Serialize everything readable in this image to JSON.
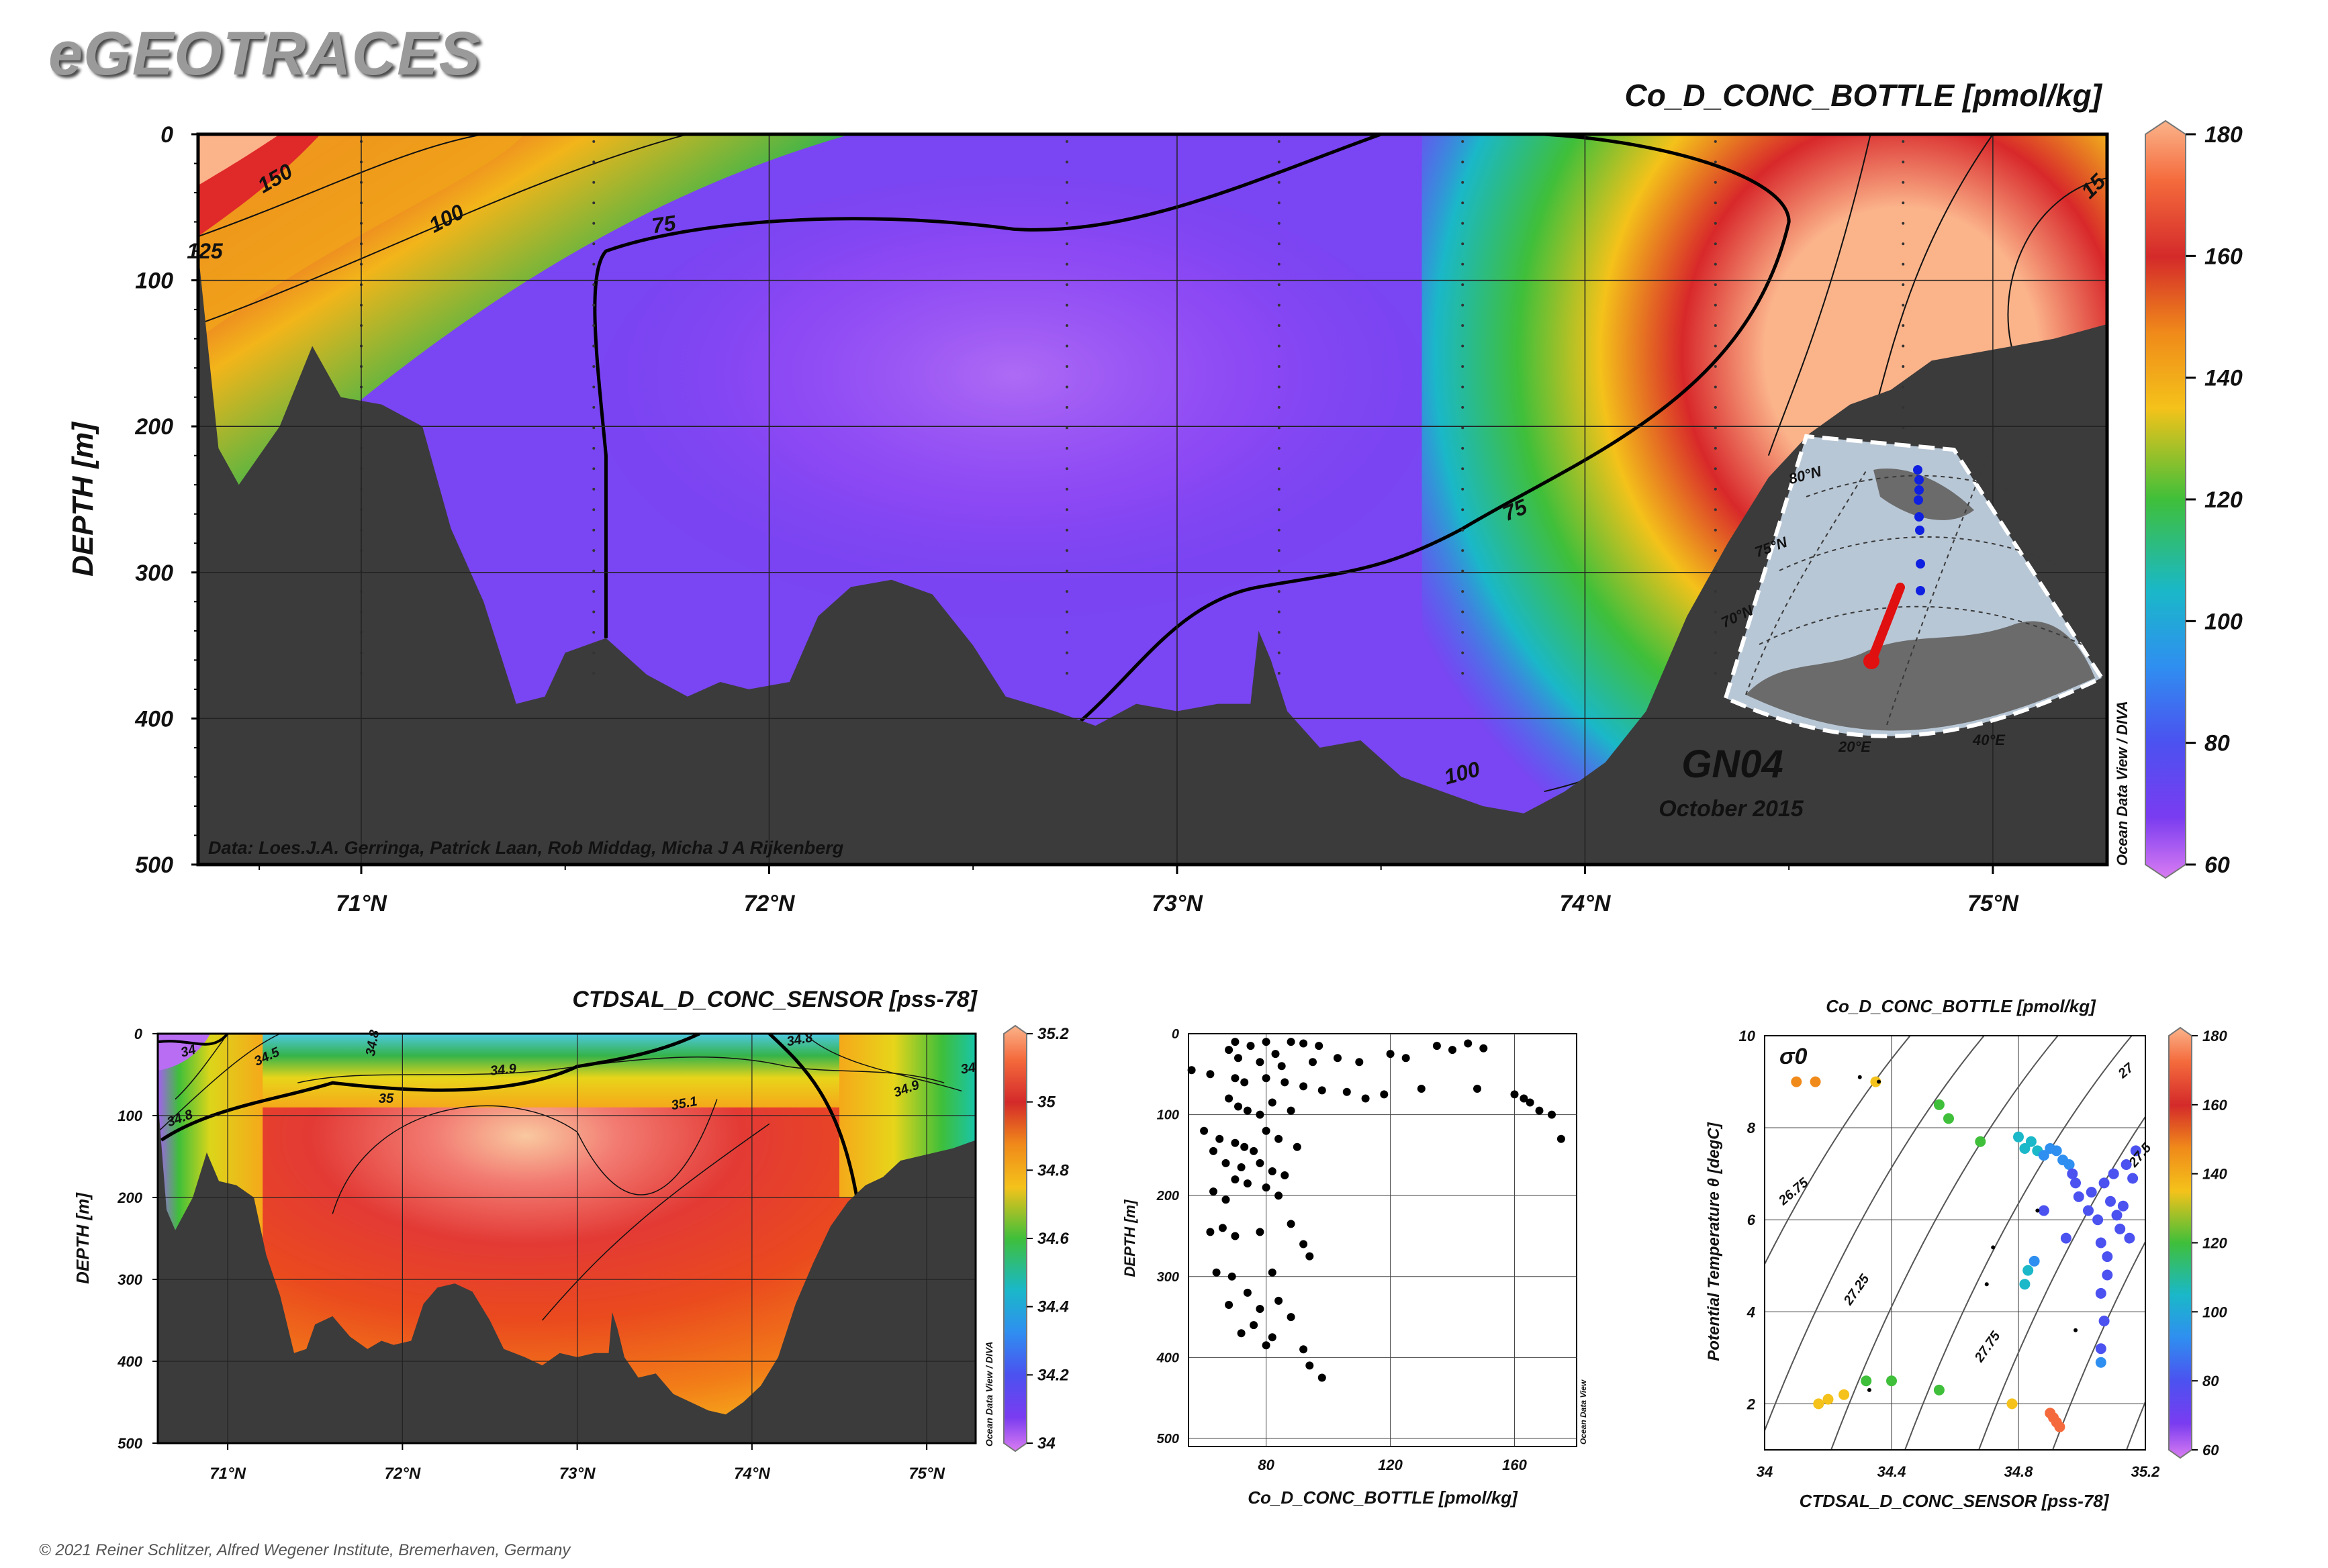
{
  "brand": "eGEOTRACES",
  "copyright": "© 2021 Reiner Schlitzer, Alfred Wegener Institute, Bremerhaven, Germany",
  "colors": {
    "bathymetry": "#3b3b3b",
    "contour": "#111111",
    "grid": "#222222"
  },
  "main_section": {
    "title": "Co_D_CONC_BOTTLE [pmol/kg]",
    "data_credit": "Data: Loes.J.A. Gerringa, Patrick Laan, Rob Middag, Micha J A Rijkenberg",
    "cruise": "GN04",
    "date": "October 2015",
    "watermark": "Ocean Data View / DIVA",
    "colorbar_ticks": [
      "180",
      "160",
      "140",
      "120",
      "100",
      "80",
      "60"
    ],
    "contour_labels": [
      "150",
      "100",
      "75",
      "75",
      "100",
      "125",
      "15"
    ],
    "inset_labels": [
      "80°N",
      "75°N",
      "70°N",
      "20°E",
      "40°E"
    ]
  },
  "sal_section": {
    "title": "CTDSAL_D_CONC_SENSOR [pss-78]",
    "watermark": "Ocean Data View / DIVA",
    "colorbar_ticks": [
      "35.2",
      "35",
      "34.8",
      "34.6",
      "34.4",
      "34.2",
      "34"
    ],
    "contour_labels": [
      "34",
      "34.5",
      "34.8",
      "34.8",
      "34.9",
      "34.9",
      "35",
      "35.1",
      "34.8",
      "34"
    ]
  },
  "profile": {
    "watermark": "Ocean Data View"
  },
  "ts_plot": {
    "title": "Co_D_CONC_BOTTLE [pmol/kg]",
    "sigma_label": "σ0",
    "isopycnal_labels": [
      "26.75",
      "27.25",
      "27.75",
      "27",
      "27.5"
    ],
    "colorbar_ticks": [
      "180",
      "160",
      "140",
      "120",
      "100",
      "80",
      "60"
    ]
  },
  "chart_data": [
    {
      "type": "heatmap",
      "title": "Co_D_CONC_BOTTLE [pmol/kg]",
      "xlabel": "",
      "ylabel": "DEPTH [m]",
      "x_ticks": [
        "71°N",
        "72°N",
        "73°N",
        "74°N",
        "75°N"
      ],
      "y_ticks": [
        "0",
        "100",
        "200",
        "300",
        "400",
        "500"
      ],
      "xlim": [
        70.6,
        75.28
      ],
      "ylim": [
        0,
        500
      ],
      "colorscale_range": [
        60,
        180
      ],
      "station_latitudes": [
        71.0,
        71.57,
        72.73,
        73.25,
        73.7,
        74.32,
        74.78,
        75.28
      ],
      "bottom_depth_profile": [
        [
          70.6,
          80
        ],
        [
          70.65,
          215
        ],
        [
          70.7,
          240
        ],
        [
          70.8,
          200
        ],
        [
          70.88,
          145
        ],
        [
          70.95,
          180
        ],
        [
          71.05,
          185
        ],
        [
          71.15,
          200
        ],
        [
          71.22,
          270
        ],
        [
          71.3,
          320
        ],
        [
          71.38,
          390
        ],
        [
          71.45,
          385
        ],
        [
          71.5,
          355
        ],
        [
          71.6,
          345
        ],
        [
          71.7,
          370
        ],
        [
          71.8,
          385
        ],
        [
          71.88,
          375
        ],
        [
          71.95,
          380
        ],
        [
          72.05,
          375
        ],
        [
          72.12,
          330
        ],
        [
          72.2,
          310
        ],
        [
          72.3,
          305
        ],
        [
          72.4,
          315
        ],
        [
          72.5,
          350
        ],
        [
          72.58,
          385
        ],
        [
          72.7,
          395
        ],
        [
          72.8,
          405
        ],
        [
          72.9,
          390
        ],
        [
          73.0,
          395
        ],
        [
          73.1,
          390
        ],
        [
          73.18,
          390
        ],
        [
          73.2,
          340
        ],
        [
          73.23,
          360
        ],
        [
          73.27,
          395
        ],
        [
          73.35,
          420
        ],
        [
          73.45,
          415
        ],
        [
          73.55,
          440
        ],
        [
          73.65,
          450
        ],
        [
          73.75,
          460
        ],
        [
          73.85,
          465
        ],
        [
          73.95,
          450
        ],
        [
          74.05,
          430
        ],
        [
          74.15,
          395
        ],
        [
          74.25,
          330
        ],
        [
          74.35,
          280
        ],
        [
          74.45,
          235
        ],
        [
          74.55,
          205
        ],
        [
          74.65,
          185
        ],
        [
          74.75,
          175
        ],
        [
          74.85,
          155
        ],
        [
          74.95,
          150
        ],
        [
          75.05,
          145
        ],
        [
          75.15,
          140
        ],
        [
          75.28,
          130
        ]
      ]
    },
    {
      "type": "heatmap",
      "title": "CTDSAL_D_CONC_SENSOR [pss-78]",
      "xlabel": "",
      "ylabel": "DEPTH [m]",
      "x_ticks": [
        "71°N",
        "72°N",
        "73°N",
        "74°N",
        "75°N"
      ],
      "y_ticks": [
        "0",
        "100",
        "200",
        "300",
        "400",
        "500"
      ],
      "xlim": [
        70.6,
        75.28
      ],
      "ylim": [
        0,
        500
      ],
      "colorscale_range": [
        34,
        35.2
      ]
    },
    {
      "type": "scatter",
      "xlabel": "Co_D_CONC_BOTTLE [pmol/kg]",
      "ylabel": "DEPTH [m]",
      "x_ticks": [
        "80",
        "120",
        "160"
      ],
      "y_ticks": [
        "0",
        "100",
        "200",
        "300",
        "400",
        "500"
      ],
      "xlim": [
        55,
        180
      ],
      "ylim": [
        0,
        510
      ],
      "points": [
        [
          70,
          10
        ],
        [
          68,
          20
        ],
        [
          75,
          15
        ],
        [
          80,
          10
        ],
        [
          88,
          10
        ],
        [
          92,
          12
        ],
        [
          97,
          15
        ],
        [
          83,
          25
        ],
        [
          71,
          30
        ],
        [
          78,
          35
        ],
        [
          85,
          40
        ],
        [
          95,
          35
        ],
        [
          103,
          30
        ],
        [
          110,
          35
        ],
        [
          120,
          25
        ],
        [
          125,
          30
        ],
        [
          135,
          15
        ],
        [
          140,
          20
        ],
        [
          145,
          12
        ],
        [
          150,
          18
        ],
        [
          56,
          45
        ],
        [
          62,
          50
        ],
        [
          70,
          55
        ],
        [
          73,
          60
        ],
        [
          80,
          55
        ],
        [
          86,
          60
        ],
        [
          92,
          65
        ],
        [
          98,
          70
        ],
        [
          106,
          72
        ],
        [
          112,
          80
        ],
        [
          118,
          75
        ],
        [
          130,
          68
        ],
        [
          148,
          68
        ],
        [
          160,
          75
        ],
        [
          163,
          80
        ],
        [
          165,
          85
        ],
        [
          168,
          95
        ],
        [
          172,
          100
        ],
        [
          175,
          130
        ],
        [
          68,
          80
        ],
        [
          71,
          90
        ],
        [
          74,
          95
        ],
        [
          78,
          100
        ],
        [
          82,
          85
        ],
        [
          88,
          95
        ],
        [
          60,
          120
        ],
        [
          65,
          130
        ],
        [
          70,
          135
        ],
        [
          73,
          140
        ],
        [
          76,
          145
        ],
        [
          80,
          120
        ],
        [
          84,
          130
        ],
        [
          90,
          140
        ],
        [
          63,
          145
        ],
        [
          67,
          160
        ],
        [
          72,
          165
        ],
        [
          78,
          160
        ],
        [
          82,
          170
        ],
        [
          86,
          175
        ],
        [
          70,
          180
        ],
        [
          74,
          185
        ],
        [
          80,
          190
        ],
        [
          63,
          195
        ],
        [
          67,
          205
        ],
        [
          84,
          200
        ],
        [
          62,
          245
        ],
        [
          66,
          240
        ],
        [
          70,
          250
        ],
        [
          78,
          245
        ],
        [
          88,
          235
        ],
        [
          92,
          260
        ],
        [
          94,
          275
        ],
        [
          64,
          295
        ],
        [
          69,
          300
        ],
        [
          82,
          295
        ],
        [
          68,
          335
        ],
        [
          74,
          320
        ],
        [
          78,
          340
        ],
        [
          84,
          330
        ],
        [
          88,
          350
        ],
        [
          72,
          370
        ],
        [
          76,
          360
        ],
        [
          80,
          385
        ],
        [
          82,
          375
        ],
        [
          92,
          390
        ],
        [
          94,
          410
        ],
        [
          98,
          425
        ]
      ]
    },
    {
      "type": "scatter",
      "title": "Co_D_CONC_BOTTLE [pmol/kg]",
      "xlabel": "CTDSAL_D_CONC_SENSOR [pss-78]",
      "ylabel": "Potential Temperature θ [degC]",
      "x_ticks": [
        "34",
        "34.4",
        "34.8",
        "35.2"
      ],
      "y_ticks": [
        "2",
        "4",
        "6",
        "8",
        "10"
      ],
      "xlim": [
        34,
        35.2
      ],
      "ylim": [
        1,
        10
      ],
      "colorscale_range": [
        60,
        180
      ],
      "points": [
        [
          34.1,
          9.0,
          140
        ],
        [
          34.16,
          9.0,
          138
        ],
        [
          34.35,
          9.0,
          128
        ],
        [
          34.17,
          2.0,
          130
        ],
        [
          34.2,
          2.1,
          132
        ],
        [
          34.25,
          2.2,
          126
        ],
        [
          34.32,
          2.5,
          118
        ],
        [
          34.4,
          2.5,
          112
        ],
        [
          34.55,
          2.3,
          112
        ],
        [
          34.78,
          2.0,
          122
        ],
        [
          34.55,
          8.5,
          118
        ],
        [
          34.58,
          8.2,
          112
        ],
        [
          34.68,
          7.7,
          108
        ],
        [
          34.8,
          7.8,
          104
        ],
        [
          34.82,
          7.55,
          98
        ],
        [
          34.84,
          7.7,
          96
        ],
        [
          34.86,
          7.5,
          94
        ],
        [
          34.88,
          7.4,
          92
        ],
        [
          34.9,
          7.55,
          90
        ],
        [
          34.92,
          7.5,
          88
        ],
        [
          34.94,
          7.3,
          86
        ],
        [
          34.96,
          7.2,
          84
        ],
        [
          34.97,
          7.0,
          80
        ],
        [
          34.98,
          6.8,
          76
        ],
        [
          34.99,
          6.5,
          74
        ],
        [
          35.02,
          6.2,
          72
        ],
        [
          35.03,
          6.6,
          72
        ],
        [
          35.05,
          6.0,
          70
        ],
        [
          35.06,
          5.5,
          70
        ],
        [
          35.07,
          6.8,
          70
        ],
        [
          35.08,
          5.2,
          70
        ],
        [
          35.08,
          4.8,
          70
        ],
        [
          35.09,
          6.4,
          70
        ],
        [
          35.1,
          7.0,
          70
        ],
        [
          35.11,
          6.1,
          70
        ],
        [
          35.12,
          5.8,
          70
        ],
        [
          35.13,
          6.3,
          70
        ],
        [
          35.14,
          7.2,
          70
        ],
        [
          35.15,
          5.6,
          70
        ],
        [
          35.16,
          6.9,
          72
        ],
        [
          35.17,
          7.5,
          74
        ],
        [
          35.06,
          4.4,
          72
        ],
        [
          35.07,
          3.8,
          74
        ],
        [
          35.06,
          3.2,
          78
        ],
        [
          35.06,
          2.9,
          82
        ],
        [
          34.95,
          5.6,
          76
        ],
        [
          34.88,
          6.2,
          80
        ],
        [
          34.85,
          5.1,
          88
        ],
        [
          34.82,
          4.6,
          94
        ],
        [
          34.83,
          4.9,
          96
        ],
        [
          34.9,
          1.8,
          166
        ],
        [
          34.91,
          1.7,
          164
        ],
        [
          34.92,
          1.6,
          162
        ],
        [
          34.93,
          1.5,
          168
        ]
      ]
    }
  ]
}
